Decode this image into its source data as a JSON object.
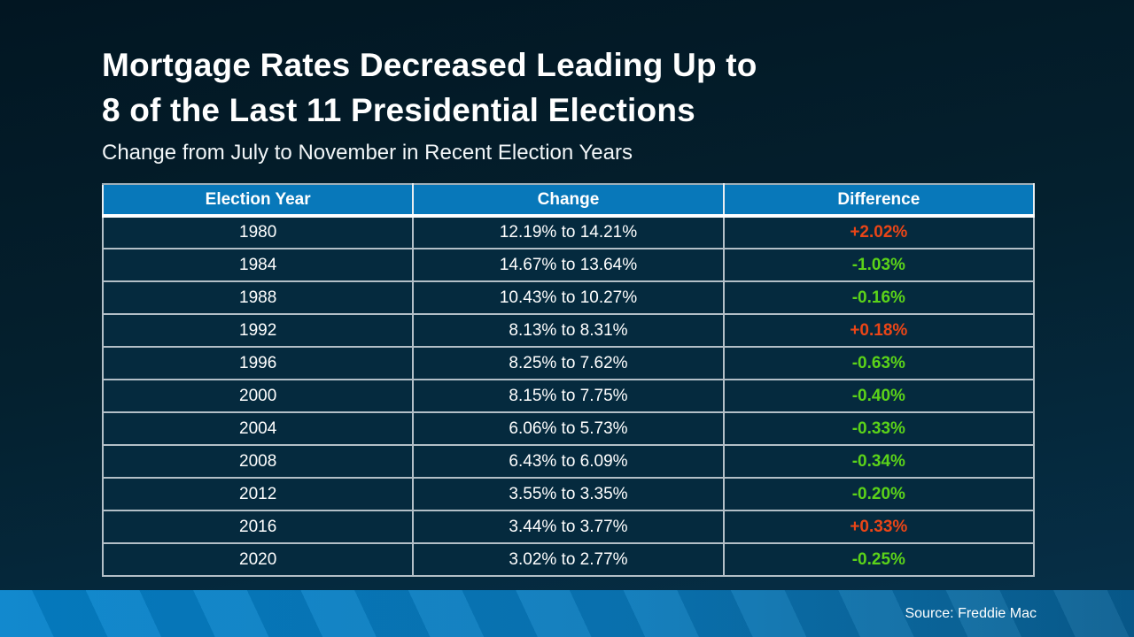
{
  "slide": {
    "title_line1": "Mortgage Rates Decreased Leading Up to",
    "title_line2": "8 of the Last 11 Presidential Elections",
    "subtitle": "Change from July to November in Recent Election Years",
    "source": "Source: Freddie Mac"
  },
  "colors": {
    "header_bg": "#0878ba",
    "increase": "#ea4517",
    "decrease": "#5bd319",
    "footer_bar": "#0583cb",
    "row_bg": "#052a3e"
  },
  "table": {
    "columns": [
      "Election Year",
      "Change",
      "Difference"
    ],
    "rows": [
      {
        "year": "1980",
        "change": "12.19% to 14.21%",
        "difference": "+2.02%",
        "diff_color": "#ea4517"
      },
      {
        "year": "1984",
        "change": "14.67% to 13.64%",
        "difference": "-1.03%",
        "diff_color": "#5bd319"
      },
      {
        "year": "1988",
        "change": "10.43% to 10.27%",
        "difference": "-0.16%",
        "diff_color": "#5bd319"
      },
      {
        "year": "1992",
        "change": "8.13% to 8.31%",
        "difference": "+0.18%",
        "diff_color": "#ea4517"
      },
      {
        "year": "1996",
        "change": "8.25% to 7.62%",
        "difference": "-0.63%",
        "diff_color": "#5bd319"
      },
      {
        "year": "2000",
        "change": "8.15% to 7.75%",
        "difference": "-0.40%",
        "diff_color": "#5bd319"
      },
      {
        "year": "2004",
        "change": "6.06% to 5.73%",
        "difference": "-0.33%",
        "diff_color": "#5bd319"
      },
      {
        "year": "2008",
        "change": "6.43% to 6.09%",
        "difference": "-0.34%",
        "diff_color": "#5bd319"
      },
      {
        "year": "2012",
        "change": "3.55% to 3.35%",
        "difference": "-0.20%",
        "diff_color": "#5bd319"
      },
      {
        "year": "2016",
        "change": "3.44% to 3.77%",
        "difference": "+0.33%",
        "diff_color": "#ea4517"
      },
      {
        "year": "2020",
        "change": "3.02% to 2.77%",
        "difference": "-0.25%",
        "diff_color": "#5bd319"
      }
    ]
  },
  "chart_data": {
    "type": "table",
    "title": "Mortgage Rates Decreased Leading Up to 8 of the Last 11 Presidential Elections",
    "subtitle": "Change from July to November in Recent Election Years",
    "columns": [
      "Election Year",
      "Change",
      "Difference"
    ],
    "rows": [
      [
        "1980",
        "12.19% to 14.21%",
        "+2.02%"
      ],
      [
        "1984",
        "14.67% to 13.64%",
        "-1.03%"
      ],
      [
        "1988",
        "10.43% to 10.27%",
        "-0.16%"
      ],
      [
        "1992",
        "8.13% to 8.31%",
        "+0.18%"
      ],
      [
        "1996",
        "8.25% to 7.62%",
        "-0.63%"
      ],
      [
        "2000",
        "8.15% to 7.75%",
        "-0.40%"
      ],
      [
        "2004",
        "6.06% to 5.73%",
        "-0.33%"
      ],
      [
        "2008",
        "6.43% to 6.09%",
        "-0.34%"
      ],
      [
        "2012",
        "3.55% to 3.35%",
        "-0.20%"
      ],
      [
        "2016",
        "3.44% to 3.77%",
        "+0.33%"
      ],
      [
        "2020",
        "3.02% to 2.77%",
        "-0.25%"
      ]
    ],
    "difference_values": [
      2.02,
      -1.03,
      -0.16,
      0.18,
      -0.63,
      -0.4,
      -0.33,
      -0.34,
      -0.2,
      0.33,
      -0.25
    ],
    "source": "Source: Freddie Mac",
    "legend_position": "none",
    "grid": true
  }
}
